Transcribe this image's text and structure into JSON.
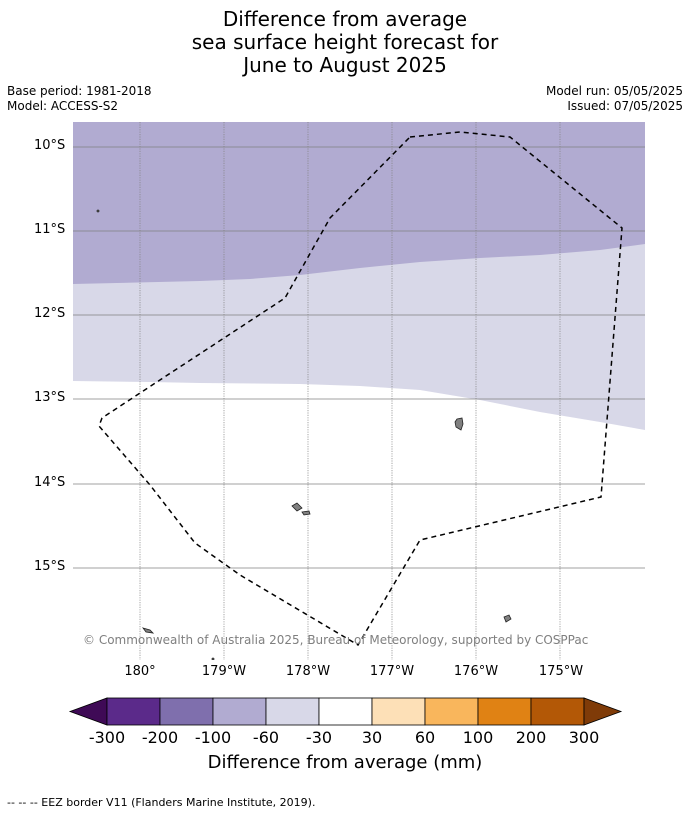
{
  "title": {
    "line1": "Difference from average",
    "line2": "sea surface height forecast for",
    "line3": "June to August 2025"
  },
  "meta": {
    "base_period": "Base period: 1981-2018",
    "model": "Model: ACCESS-S2",
    "model_run": "Model run: 05/05/2025",
    "issued": "Issued: 07/05/2025"
  },
  "map": {
    "lat_labels": [
      "10°S",
      "11°S",
      "12°S",
      "13°S",
      "14°S",
      "15°S"
    ],
    "lon_labels": [
      "180°",
      "179°W",
      "178°W",
      "177°W",
      "176°W",
      "175°W"
    ],
    "copyright": "© Commonwealth of Australia 2025, Bureau of Meteorology, supported by COSPPac",
    "eez_boundary": "dashed",
    "land_color": "#808080"
  },
  "colorbar": {
    "ticks": [
      "-300",
      "-200",
      "-100",
      "-60",
      "-30",
      "30",
      "60",
      "100",
      "200",
      "300"
    ],
    "colors": [
      "#3f0a56",
      "#5b2a8a",
      "#7f6fad",
      "#b1abd1",
      "#d8d8e8",
      "#ffffff",
      "#fde0b7",
      "#f9b65c",
      "#e08214",
      "#b35806",
      "#7f3b08"
    ],
    "label": "Difference from average (mm)"
  },
  "footer": "--  --  -- EEZ border V11 (Flanders Marine Institute, 2019)."
}
